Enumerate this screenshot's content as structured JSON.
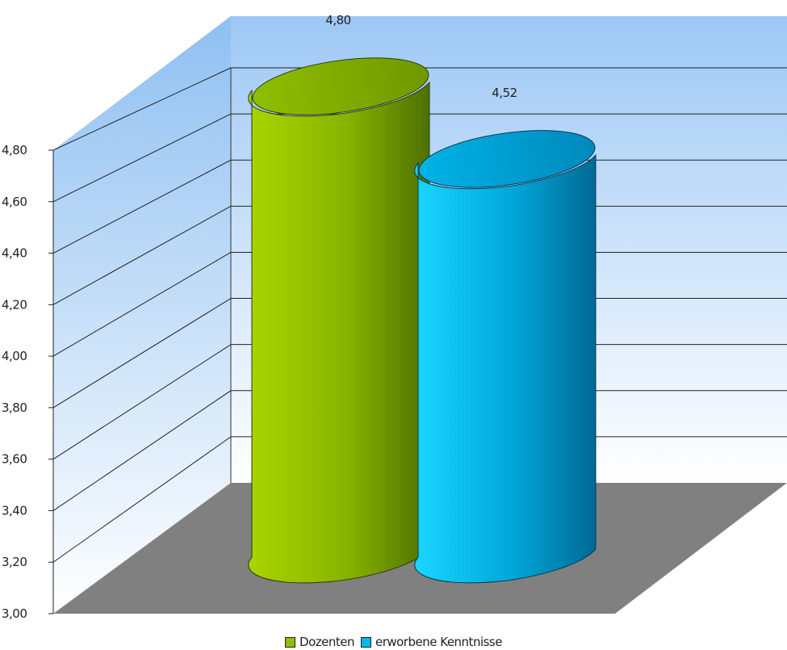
{
  "chart_data": {
    "type": "bar",
    "style": "3d-cylinder",
    "categories": [
      ""
    ],
    "series": [
      {
        "name": "Dozenten",
        "values": [
          4.8
        ],
        "color": "#8fbf00"
      },
      {
        "name": "erworbene Kenntnisse",
        "values": [
          4.52
        ],
        "color": "#00b8ea"
      }
    ],
    "data_labels": [
      "4,80",
      "4,52"
    ],
    "ylim": [
      3.0,
      4.8
    ],
    "yticks": [
      "3,00",
      "3,20",
      "3,40",
      "3,60",
      "3,80",
      "4,00",
      "4,20",
      "4,40",
      "4,60",
      "4,80"
    ],
    "grid": true,
    "legend_position": "bottom-center",
    "wall_color": "#9dc8f5",
    "floor_color": "#808080"
  }
}
